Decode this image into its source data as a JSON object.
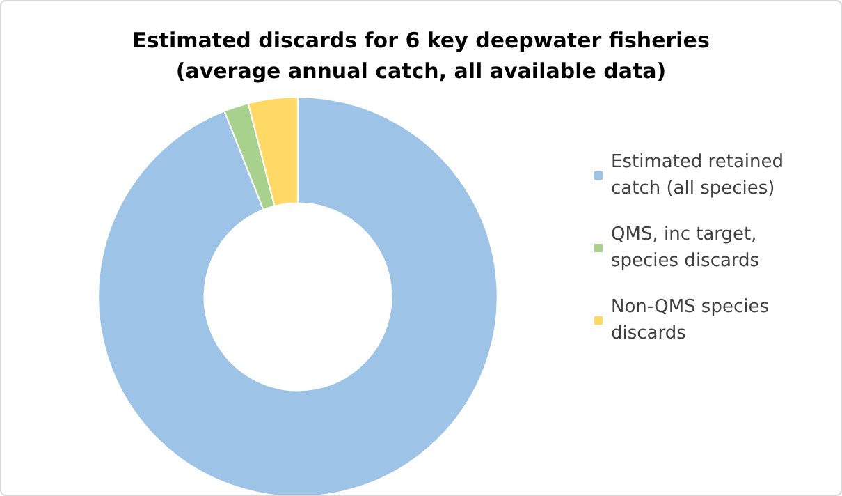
{
  "chart_data": {
    "type": "donut",
    "title": "Estimated discards for 6 key deepwater fisheries\n(average annual catch, all available data)",
    "categories": [
      "Estimated retained catch (all species)",
      "QMS, inc target, species discards",
      "Non-QMS species discards"
    ],
    "values": [
      94,
      2,
      4
    ],
    "colors": [
      "#9dc3e6",
      "#a9d18e",
      "#ffd966"
    ],
    "legend": "right"
  }
}
